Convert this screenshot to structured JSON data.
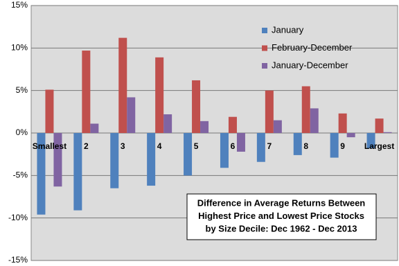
{
  "chart_data": {
    "type": "bar",
    "categories": [
      "Smallest",
      "2",
      "3",
      "4",
      "5",
      "6",
      "7",
      "8",
      "9",
      "Largest"
    ],
    "series": [
      {
        "name": "January",
        "color": "#4f81bd",
        "values": [
          -9.6,
          -9.1,
          -6.5,
          -6.2,
          -5.0,
          -4.1,
          -3.4,
          -2.6,
          -2.9,
          -1.8
        ]
      },
      {
        "name": "February-December",
        "color": "#c0504d",
        "values": [
          5.1,
          9.7,
          11.2,
          8.9,
          6.2,
          1.9,
          5.0,
          5.5,
          2.3,
          1.7
        ]
      },
      {
        "name": "January-December",
        "color": "#8064a2",
        "values": [
          -6.3,
          1.1,
          4.2,
          2.2,
          1.4,
          -2.2,
          1.5,
          2.9,
          -0.5,
          0.1
        ]
      }
    ],
    "ylim": [
      -15,
      15
    ],
    "yticks": [
      {
        "value": -15,
        "label": "-15%"
      },
      {
        "value": -10,
        "label": "-10%"
      },
      {
        "value": -5,
        "label": "-5%"
      },
      {
        "value": 0,
        "label": "0%"
      },
      {
        "value": 5,
        "label": "5%"
      },
      {
        "value": 10,
        "label": "10%"
      },
      {
        "value": 15,
        "label": "15%"
      }
    ],
    "grid": true,
    "annotation": [
      "Difference in Average Returns Between",
      "Highest Price and Lowest Price Stocks",
      "by Size Decile: Dec 1962 - Dec 2013"
    ]
  }
}
